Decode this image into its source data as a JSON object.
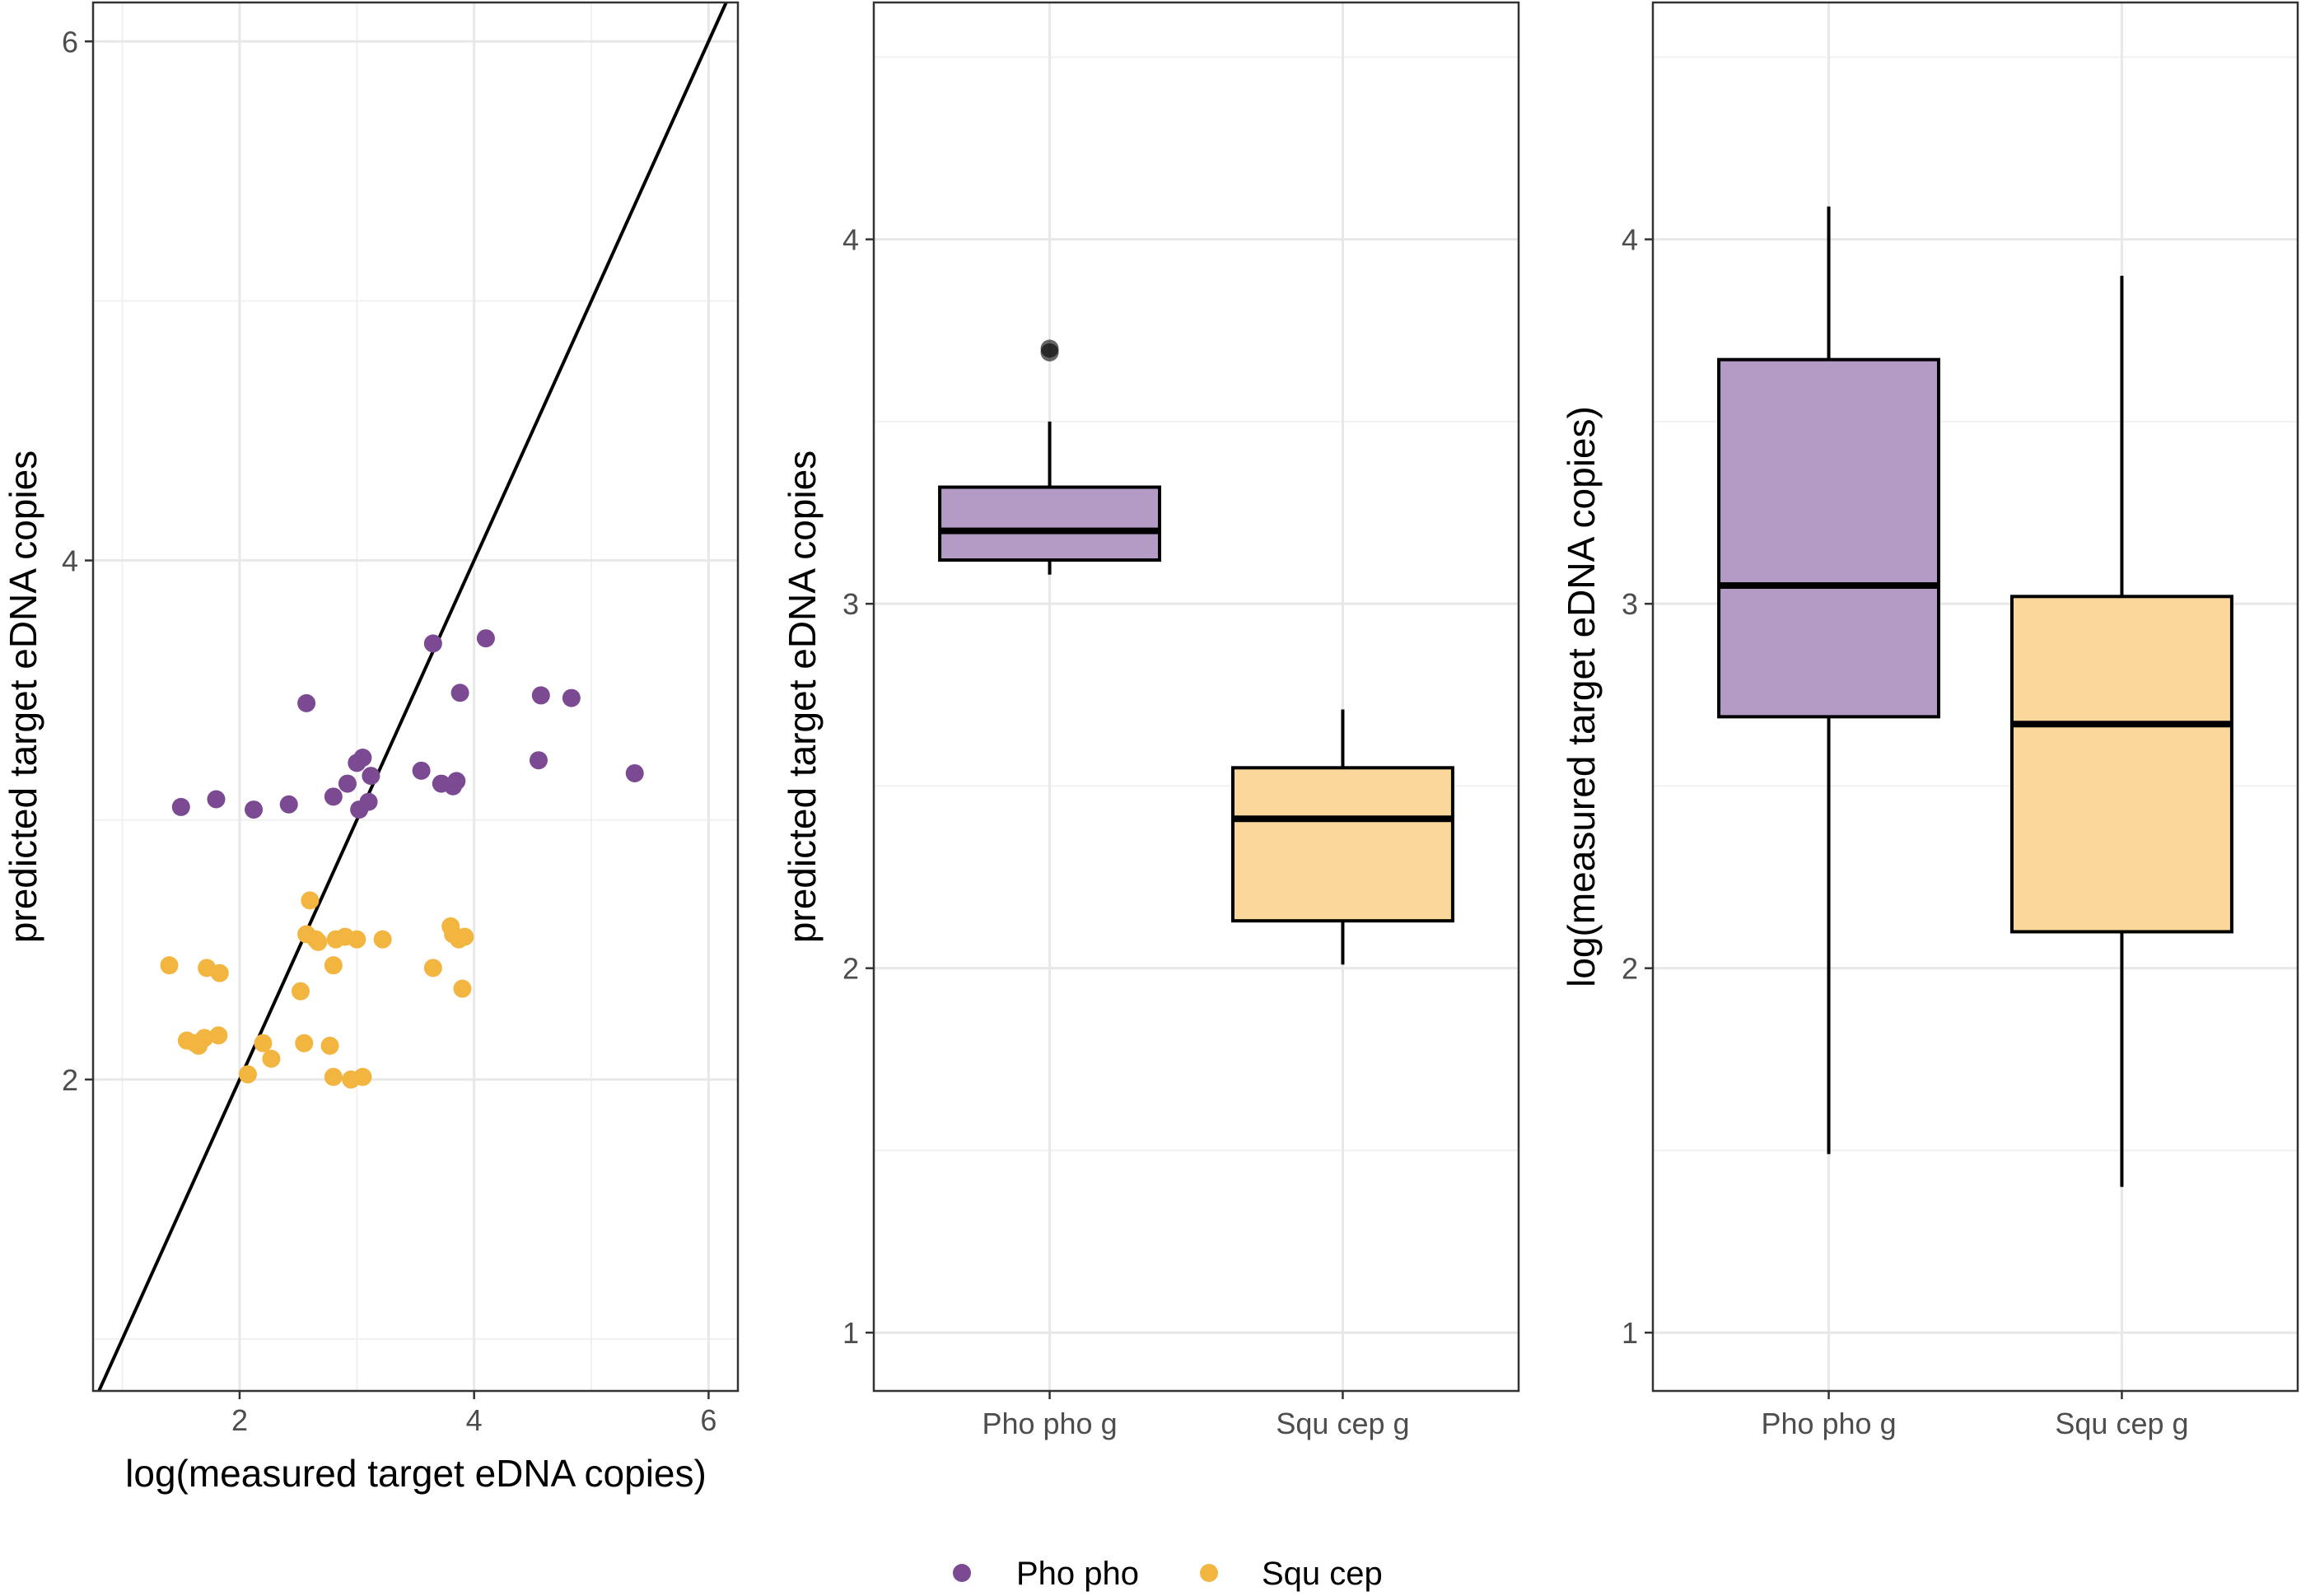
{
  "colors": {
    "pho": "#7B4A92",
    "squ": "#F2B540",
    "pho_fill": "#B39BC6",
    "squ_fill": "#FAD79A",
    "grid": "#e8e8e8"
  },
  "legend": {
    "items": [
      {
        "label": "Pho pho",
        "color": "#7B4A92"
      },
      {
        "label": "Squ cep",
        "color": "#F2B540"
      }
    ]
  },
  "chart_data": [
    {
      "type": "scatter",
      "xlabel": "log(measured target eDNA copies)",
      "ylabel": "predicted target eDNA copies",
      "xlim": [
        0.75,
        6.25
      ],
      "ylim": [
        0.8,
        6.15
      ],
      "xticks": [
        2,
        4,
        6
      ],
      "yticks": [
        2,
        4,
        6
      ],
      "reference_line": {
        "slope": 1,
        "intercept": 0
      },
      "series": [
        {
          "name": "Pho pho",
          "color": "#7B4A92",
          "x": [
            1.5,
            1.8,
            2.12,
            2.42,
            2.57,
            2.8,
            2.92,
            3.0,
            3.02,
            3.05,
            3.1,
            3.12,
            3.55,
            3.65,
            3.72,
            3.82,
            3.85,
            3.88,
            4.1,
            4.55,
            4.57,
            4.83,
            5.37
          ],
          "y": [
            3.05,
            3.08,
            3.04,
            3.06,
            3.45,
            3.09,
            3.14,
            3.22,
            3.04,
            3.24,
            3.07,
            3.17,
            3.19,
            3.68,
            3.14,
            3.13,
            3.15,
            3.49,
            3.7,
            3.23,
            3.48,
            3.47,
            3.18
          ]
        },
        {
          "name": "Squ cep",
          "color": "#F2B540",
          "x": [
            1.4,
            1.55,
            1.62,
            1.65,
            1.7,
            1.72,
            1.82,
            1.83,
            2.07,
            2.2,
            2.27,
            2.52,
            2.55,
            2.57,
            2.6,
            2.65,
            2.67,
            2.77,
            2.8,
            2.8,
            2.82,
            2.9,
            2.95,
            3.0,
            3.05,
            3.22,
            3.65,
            3.8,
            3.82,
            3.87,
            3.9,
            3.92
          ],
          "y": [
            2.44,
            2.15,
            2.14,
            2.13,
            2.16,
            2.43,
            2.17,
            2.41,
            2.02,
            2.14,
            2.08,
            2.34,
            2.14,
            2.56,
            2.69,
            2.54,
            2.53,
            2.13,
            2.01,
            2.44,
            2.54,
            2.55,
            2.0,
            2.54,
            2.01,
            2.54,
            2.43,
            2.59,
            2.56,
            2.54,
            2.35,
            2.55
          ]
        }
      ]
    },
    {
      "type": "box",
      "ylabel": "predicted target eDNA copies",
      "categories": [
        "Pho pho g",
        "Squ cep g"
      ],
      "ylim": [
        0.84,
        4.65
      ],
      "yticks": [
        1,
        2,
        3,
        4
      ],
      "boxes": [
        {
          "name": "Pho pho g",
          "min": 3.08,
          "q1": 3.12,
          "median": 3.2,
          "q3": 3.32,
          "max": 3.5,
          "outliers": [
            3.69,
            3.7
          ]
        },
        {
          "name": "Squ cep g",
          "min": 2.01,
          "q1": 2.13,
          "median": 2.41,
          "q3": 2.55,
          "max": 2.71,
          "outliers": []
        }
      ]
    },
    {
      "type": "box",
      "ylabel": "log(measured target eDNA copies)",
      "categories": [
        "Pho pho g",
        "Squ cep g"
      ],
      "ylim": [
        0.84,
        4.65
      ],
      "yticks": [
        1,
        2,
        3,
        4
      ],
      "boxes": [
        {
          "name": "Pho pho g",
          "min": 1.49,
          "q1": 2.69,
          "median": 3.05,
          "q3": 3.67,
          "max": 4.09,
          "outliers": []
        },
        {
          "name": "Squ cep g",
          "min": 1.4,
          "q1": 2.1,
          "median": 2.67,
          "q3": 3.02,
          "max": 3.9,
          "outliers": []
        }
      ]
    }
  ]
}
